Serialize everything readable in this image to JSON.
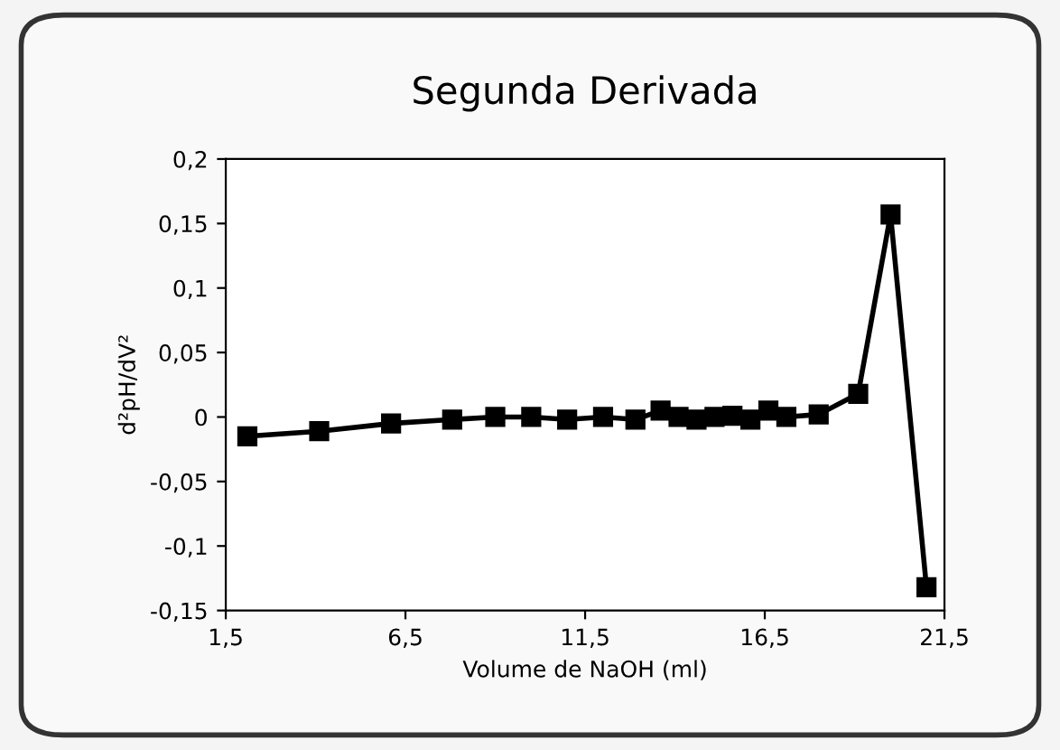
{
  "chart_data": {
    "type": "line",
    "title": "Segunda Derivada",
    "xlabel": "Volume de NaOH (ml)",
    "ylabel": "d²pH/dV²",
    "x": [
      2.1,
      4.1,
      6.1,
      7.8,
      9.0,
      10.0,
      11.0,
      12.0,
      12.9,
      13.6,
      14.1,
      14.6,
      15.1,
      15.6,
      16.1,
      16.6,
      17.1,
      18.0,
      19.1,
      20.0,
      21.0
    ],
    "series": [
      {
        "color": "#000000",
        "values": [
          -0.015,
          -0.011,
          -0.005,
          -0.002,
          0.0,
          0.0,
          -0.002,
          0.0,
          -0.002,
          0.005,
          0.0,
          -0.002,
          0.0,
          0.001,
          -0.002,
          0.005,
          0.0,
          0.002,
          0.018,
          0.157,
          -0.132
        ]
      }
    ],
    "xlim": [
      1.5,
      21.5
    ],
    "xticks": [
      {
        "value": 1.5,
        "label": "1,5"
      },
      {
        "value": 6.5,
        "label": "6,5"
      },
      {
        "value": 11.5,
        "label": "11,5"
      },
      {
        "value": 16.5,
        "label": "16,5"
      },
      {
        "value": 21.5,
        "label": "21,5"
      }
    ],
    "ylim": [
      -0.15,
      0.2
    ],
    "yticks": [
      {
        "value": -0.15,
        "label": "-0,15"
      },
      {
        "value": -0.1,
        "label": "-0,1"
      },
      {
        "value": -0.05,
        "label": "-0,05"
      },
      {
        "value": 0,
        "label": "0"
      },
      {
        "value": 0.05,
        "label": "0,05"
      },
      {
        "value": 0.1,
        "label": "0,1"
      },
      {
        "value": 0.15,
        "label": "0,15"
      },
      {
        "value": 0.2,
        "label": "0,2"
      }
    ],
    "grid": false,
    "legend": false,
    "marker": "square",
    "line_style": "solid"
  }
}
